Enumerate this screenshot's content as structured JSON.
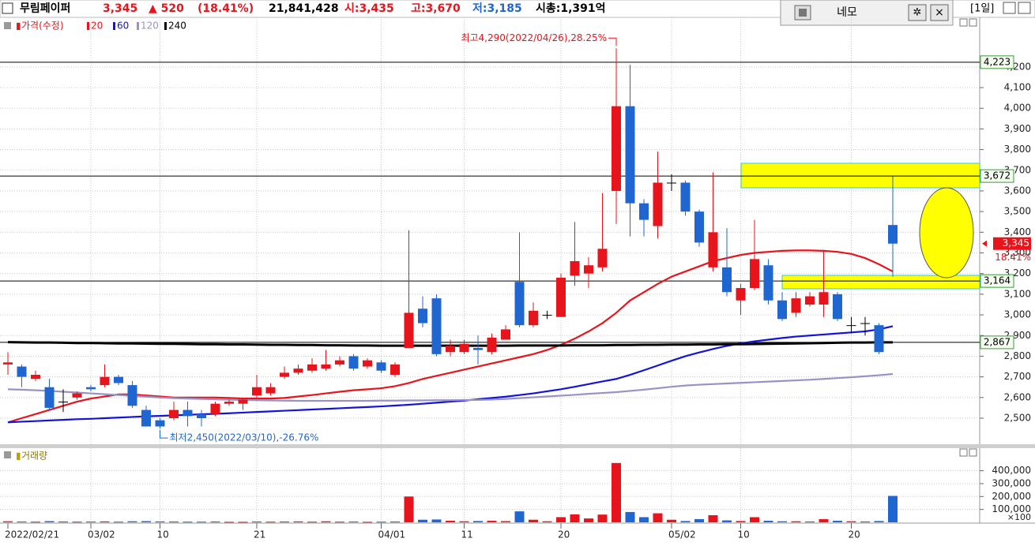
{
  "header": {
    "name": "무림페이퍼",
    "price": "3,345",
    "change": "▲ 520",
    "change_pct": "(18.41%)",
    "volume": "21,841,428",
    "open": "시:3,435",
    "high": "고:3,670",
    "low": "저:3,185",
    "mcap": "시총:1,391억",
    "tool_name": "네모",
    "period": "[1일]"
  },
  "chart_data": [
    {
      "type": "candlestick",
      "name": "가격(수정)",
      "categories": [
        "2022/02/21",
        null,
        null,
        null,
        null,
        null,
        "03/02",
        null,
        null,
        null,
        null,
        "10",
        null,
        null,
        null,
        null,
        null,
        null,
        "21",
        null,
        null,
        null,
        null,
        null,
        null,
        null,
        null,
        "04/01",
        null,
        null,
        null,
        null,
        null,
        "11",
        null,
        null,
        null,
        null,
        null,
        null,
        "20",
        null,
        null,
        null,
        null,
        null,
        null,
        null,
        "05/02",
        null,
        null,
        null,
        null,
        "10",
        null,
        null,
        null,
        null,
        null,
        null,
        null,
        "20",
        null,
        null,
        null
      ],
      "open": [
        2760,
        2750,
        2690,
        2650,
        2580,
        2600,
        2650,
        2660,
        2700,
        2660,
        2540,
        2490,
        2500,
        2540,
        2520,
        2520,
        2570,
        2570,
        2610,
        2620,
        2700,
        2720,
        2730,
        2740,
        2760,
        2800,
        2750,
        2770,
        2710,
        2840,
        3030,
        3080,
        2820,
        2820,
        2840,
        2820,
        2880,
        3160,
        2950,
        3000,
        2990,
        3190,
        3200,
        3230,
        3600,
        4010,
        3540,
        3430,
        3640,
        3640,
        3500,
        3230,
        3230,
        3070,
        3130,
        3240,
        3070,
        3010,
        3050,
        3050,
        3100,
        2950,
        2960,
        2950,
        3435
      ],
      "high": [
        2820,
        2760,
        2730,
        2690,
        2640,
        2630,
        2660,
        2760,
        2710,
        2680,
        2560,
        2500,
        2580,
        2580,
        2540,
        2580,
        2590,
        2600,
        2710,
        2670,
        2750,
        2760,
        2790,
        2830,
        2800,
        2810,
        2790,
        2780,
        2770,
        3410,
        3090,
        3100,
        2880,
        2880,
        2900,
        2910,
        2950,
        3400,
        3060,
        3020,
        3200,
        3450,
        3280,
        3590,
        4290,
        4210,
        3560,
        3790,
        3680,
        3650,
        3510,
        3690,
        3420,
        3150,
        3460,
        3270,
        3110,
        3110,
        3110,
        3310,
        3110,
        2990,
        2990,
        2960,
        3670
      ],
      "low": [
        2710,
        2650,
        2680,
        2540,
        2530,
        2590,
        2630,
        2650,
        2660,
        2550,
        2460,
        2450,
        2490,
        2460,
        2460,
        2510,
        2560,
        2540,
        2600,
        2610,
        2690,
        2710,
        2720,
        2730,
        2750,
        2730,
        2740,
        2720,
        2700,
        2840,
        2940,
        2800,
        2800,
        2810,
        2760,
        2810,
        2880,
        2940,
        2940,
        2980,
        2990,
        3140,
        3130,
        3210,
        3440,
        3380,
        3380,
        3370,
        3600,
        3480,
        3330,
        3210,
        3090,
        3000,
        3120,
        3050,
        2970,
        2990,
        3040,
        2990,
        2970,
        2910,
        2900,
        2810,
        3185
      ],
      "close": [
        2770,
        2700,
        2710,
        2550,
        2580,
        2620,
        2640,
        2700,
        2670,
        2560,
        2460,
        2460,
        2540,
        2510,
        2500,
        2570,
        2580,
        2590,
        2650,
        2650,
        2720,
        2740,
        2760,
        2760,
        2780,
        2740,
        2780,
        2730,
        2760,
        3010,
        2960,
        2810,
        2850,
        2860,
        2830,
        2890,
        2930,
        2950,
        3020,
        3000,
        3180,
        3260,
        3240,
        3320,
        4010,
        3540,
        3460,
        3640,
        3640,
        3500,
        3350,
        3400,
        3110,
        3130,
        3270,
        3070,
        2980,
        3080,
        3090,
        3110,
        2980,
        2950,
        2960,
        2820,
        3345
      ],
      "up_color": "#e8141b",
      "down_color": "#1f66d1",
      "flat_color": "#000000",
      "series": [
        {
          "name": "20",
          "color": "#e8141b",
          "values": [
            2480,
            2500,
            2520,
            2540,
            2560,
            2580,
            2595,
            2605,
            2615,
            2615,
            2610,
            2605,
            2600,
            2600,
            2600,
            2600,
            2598,
            2595,
            2595,
            2595,
            2598,
            2605,
            2612,
            2620,
            2628,
            2635,
            2640,
            2645,
            2655,
            2670,
            2690,
            2705,
            2720,
            2735,
            2750,
            2765,
            2780,
            2795,
            2810,
            2830,
            2855,
            2885,
            2920,
            2960,
            3010,
            3070,
            3110,
            3150,
            3185,
            3210,
            3235,
            3260,
            3275,
            3290,
            3300,
            3305,
            3310,
            3312,
            3312,
            3310,
            3305,
            3295,
            3275,
            3245,
            3210
          ]
        },
        {
          "name": "60",
          "color": "#1414d8",
          "values": [
            2480,
            2483,
            2486,
            2489,
            2492,
            2495,
            2497,
            2500,
            2503,
            2506,
            2509,
            2511,
            2514,
            2516,
            2519,
            2521,
            2524,
            2527,
            2530,
            2533,
            2536,
            2539,
            2542,
            2545,
            2548,
            2551,
            2554,
            2557,
            2561,
            2565,
            2570,
            2575,
            2580,
            2585,
            2592,
            2598,
            2604,
            2612,
            2620,
            2630,
            2640,
            2652,
            2665,
            2678,
            2690,
            2710,
            2732,
            2755,
            2778,
            2800,
            2818,
            2835,
            2850,
            2862,
            2872,
            2880,
            2888,
            2895,
            2900,
            2905,
            2910,
            2915,
            2920,
            2930,
            2945
          ]
        },
        {
          "name": "120",
          "color": "#9a92c6",
          "values": [
            2640,
            2638,
            2635,
            2632,
            2628,
            2624,
            2620,
            2616,
            2612,
            2608,
            2604,
            2600,
            2597,
            2595,
            2593,
            2591,
            2589,
            2588,
            2587,
            2586,
            2585,
            2584,
            2584,
            2584,
            2584,
            2584,
            2584,
            2585,
            2585,
            2586,
            2586,
            2587,
            2587,
            2588,
            2588,
            2590,
            2593,
            2597,
            2601,
            2605,
            2609,
            2613,
            2618,
            2622,
            2626,
            2632,
            2638,
            2645,
            2652,
            2658,
            2662,
            2665,
            2668,
            2671,
            2674,
            2677,
            2680,
            2683,
            2686,
            2690,
            2694,
            2698,
            2703,
            2708,
            2714
          ]
        },
        {
          "name": "240",
          "color": "#000000",
          "values": [
            2868,
            2867,
            2866,
            2866,
            2865,
            2864,
            2864,
            2863,
            2862,
            2862,
            2861,
            2860,
            2860,
            2859,
            2858,
            2858,
            2857,
            2857,
            2856,
            2855,
            2855,
            2854,
            2854,
            2853,
            2853,
            2852,
            2852,
            2851,
            2851,
            2851,
            2851,
            2851,
            2851,
            2851,
            2851,
            2851,
            2851,
            2852,
            2852,
            2852,
            2852,
            2853,
            2853,
            2853,
            2854,
            2854,
            2855,
            2855,
            2856,
            2856,
            2857,
            2857,
            2858,
            2858,
            2859,
            2860,
            2861,
            2862,
            2863,
            2864,
            2865,
            2866,
            2866,
            2867,
            2867
          ]
        }
      ],
      "ylim": [
        2374,
        4440
      ],
      "yticks": [
        {
          "value": 2500,
          "label": "2,500"
        },
        {
          "value": 2600,
          "label": "2,600"
        },
        {
          "value": 2700,
          "label": "2,700"
        },
        {
          "value": 2800,
          "label": "2,800"
        },
        {
          "value": 2900,
          "label": "2,900"
        },
        {
          "value": 3000,
          "label": "3,000"
        },
        {
          "value": 3100,
          "label": "3,100"
        },
        {
          "value": 3200,
          "label": "3,200"
        },
        {
          "value": 3300,
          "label": "3,300"
        },
        {
          "value": 3400,
          "label": "3,400"
        },
        {
          "value": 3500,
          "label": "3,500"
        },
        {
          "value": 3600,
          "label": "3,600"
        },
        {
          "value": 3700,
          "label": "3,700"
        },
        {
          "value": 3800,
          "label": "3,800"
        },
        {
          "value": 3900,
          "label": "3,900"
        },
        {
          "value": 4000,
          "label": "4,000"
        },
        {
          "value": 4100,
          "label": "4,100"
        },
        {
          "value": 4200,
          "label": "4,200"
        }
      ],
      "grid": true,
      "hlines": [
        {
          "value": 4223,
          "label": "4,223"
        },
        {
          "value": 3672,
          "label": "3,672"
        },
        {
          "value": 3164,
          "label": "3,164"
        },
        {
          "value": 2867,
          "label": "2,867"
        }
      ],
      "last": {
        "value": 3345,
        "label": "3,345"
      },
      "last_change": "18.41%",
      "max_label": "최고4,290(2022/04/26),28.25%",
      "min_label": "최저2,450(2022/03/10),-26.76%"
    },
    {
      "type": "bar",
      "name": "거래량",
      "values": [
        8000,
        6000,
        5000,
        9000,
        6000,
        5000,
        6000,
        7000,
        5000,
        8000,
        9000,
        7000,
        6000,
        5000,
        5000,
        6000,
        4000,
        4000,
        6000,
        5000,
        6000,
        7000,
        5000,
        8000,
        5000,
        6000,
        4000,
        5000,
        6000,
        200000,
        20000,
        22000,
        12000,
        8000,
        10000,
        12000,
        9000,
        85000,
        20000,
        8000,
        40000,
        62000,
        30000,
        60000,
        460000,
        80000,
        40000,
        70000,
        20000,
        10000,
        25000,
        55000,
        15000,
        10000,
        40000,
        12000,
        8000,
        8000,
        6000,
        25000,
        12000,
        8000,
        6000,
        10000,
        205000
      ],
      "ylim": [
        0,
        575000
      ],
      "yticks": [
        {
          "value": 100000,
          "label": "100,000"
        },
        {
          "value": 200000,
          "label": "200,000"
        },
        {
          "value": 300000,
          "label": "300,000"
        },
        {
          "value": 400000,
          "label": "400,000"
        }
      ],
      "unit_label": "×100",
      "grid": true
    }
  ]
}
